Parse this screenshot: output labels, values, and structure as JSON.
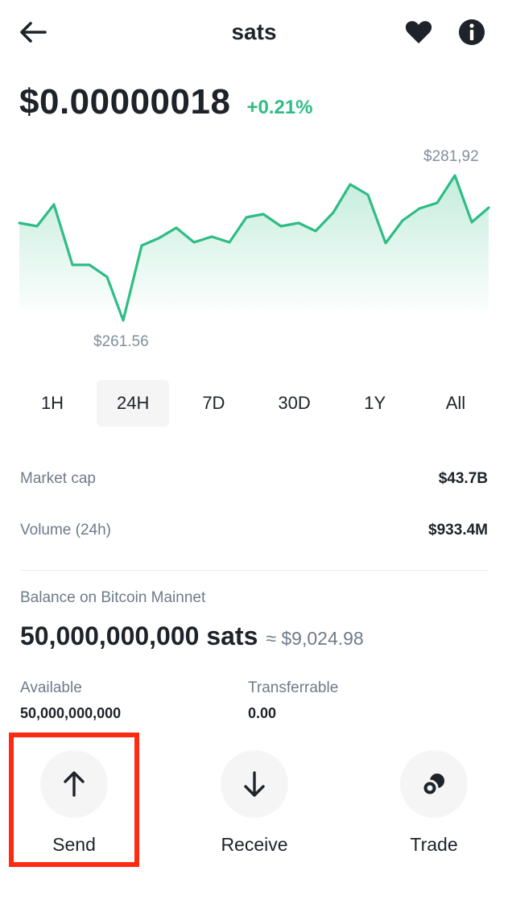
{
  "header": {
    "title": "sats",
    "back_icon": "arrow-left-icon",
    "favorite_icon": "heart-icon",
    "info_icon": "info-icon"
  },
  "price": {
    "value": "$0.00000018",
    "change": "+0.21%",
    "change_color": "#2ebd85"
  },
  "chart": {
    "high_label": "$281,92",
    "low_label": "$261.56",
    "line_color": "#2ebd85"
  },
  "ranges": {
    "items": [
      "1H",
      "24H",
      "7D",
      "30D",
      "1Y",
      "All"
    ],
    "active": "24H"
  },
  "stats": {
    "market_cap_label": "Market cap",
    "market_cap_value": "$43.7B",
    "volume_label": "Volume (24h)",
    "volume_value": "$933.4M"
  },
  "balance": {
    "label": "Balance on Bitcoin Mainnet",
    "amount": "50,000,000,000 sats",
    "fiat": "≈ $9,024.98",
    "available_label": "Available",
    "available_value": "50,000,000,000",
    "transferrable_label": "Transferrable",
    "transferrable_value": "0.00"
  },
  "actions": {
    "send_label": "Send",
    "send_icon": "arrow-up-icon",
    "receive_label": "Receive",
    "receive_icon": "arrow-down-icon",
    "trade_label": "Trade",
    "trade_icon": "trade-icon",
    "highlight_color": "#ff2a12"
  }
}
